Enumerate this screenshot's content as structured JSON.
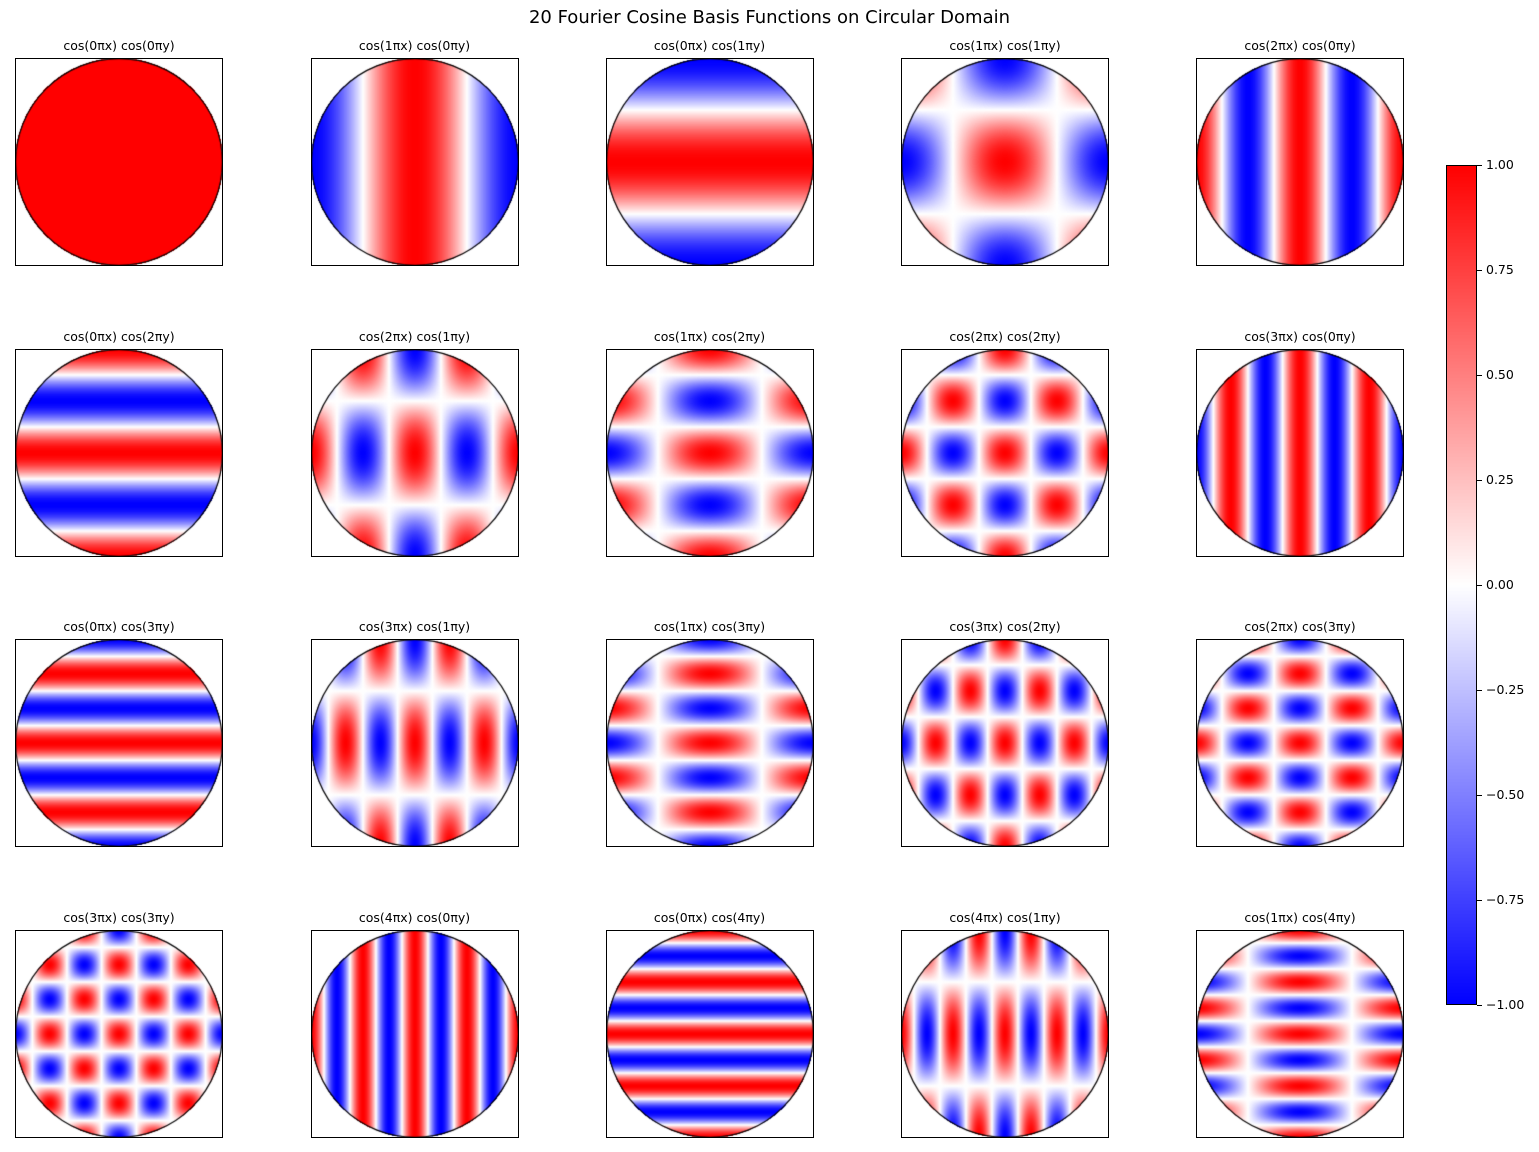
{
  "chart_data": {
    "type": "heatmap",
    "title": "20 Fourier Cosine Basis Functions on Circular Domain",
    "colormap": "bwr",
    "domain": "circle",
    "vmin": -1.0,
    "vmax": 1.0,
    "grid": false,
    "panels": [
      {
        "title": "cos(0πx) cos(0πy)",
        "m": 0,
        "n": 0
      },
      {
        "title": "cos(1πx) cos(0πy)",
        "m": 1,
        "n": 0
      },
      {
        "title": "cos(0πx) cos(1πy)",
        "m": 0,
        "n": 1
      },
      {
        "title": "cos(1πx) cos(1πy)",
        "m": 1,
        "n": 1
      },
      {
        "title": "cos(2πx) cos(0πy)",
        "m": 2,
        "n": 0
      },
      {
        "title": "cos(0πx) cos(2πy)",
        "m": 0,
        "n": 2
      },
      {
        "title": "cos(2πx) cos(1πy)",
        "m": 2,
        "n": 1
      },
      {
        "title": "cos(1πx) cos(2πy)",
        "m": 1,
        "n": 2
      },
      {
        "title": "cos(2πx) cos(2πy)",
        "m": 2,
        "n": 2
      },
      {
        "title": "cos(3πx) cos(0πy)",
        "m": 3,
        "n": 0
      },
      {
        "title": "cos(0πx) cos(3πy)",
        "m": 0,
        "n": 3
      },
      {
        "title": "cos(3πx) cos(1πy)",
        "m": 3,
        "n": 1
      },
      {
        "title": "cos(1πx) cos(3πy)",
        "m": 1,
        "n": 3
      },
      {
        "title": "cos(3πx) cos(2πy)",
        "m": 3,
        "n": 2
      },
      {
        "title": "cos(2πx) cos(3πy)",
        "m": 2,
        "n": 3
      },
      {
        "title": "cos(3πx) cos(3πy)",
        "m": 3,
        "n": 3
      },
      {
        "title": "cos(4πx) cos(0πy)",
        "m": 4,
        "n": 0
      },
      {
        "title": "cos(0πx) cos(4πy)",
        "m": 0,
        "n": 4
      },
      {
        "title": "cos(4πx) cos(1πy)",
        "m": 4,
        "n": 1
      },
      {
        "title": "cos(1πx) cos(4πy)",
        "m": 1,
        "n": 4
      }
    ],
    "colorbar": {
      "ticks": [
        1.0,
        0.75,
        0.5,
        0.25,
        0.0,
        -0.25,
        -0.5,
        -0.75,
        -1.0
      ],
      "tick_labels": [
        "1.00",
        "0.75",
        "0.50",
        "0.25",
        "0.00",
        "−0.25",
        "−0.50",
        "−0.75",
        "−1.00"
      ]
    }
  }
}
